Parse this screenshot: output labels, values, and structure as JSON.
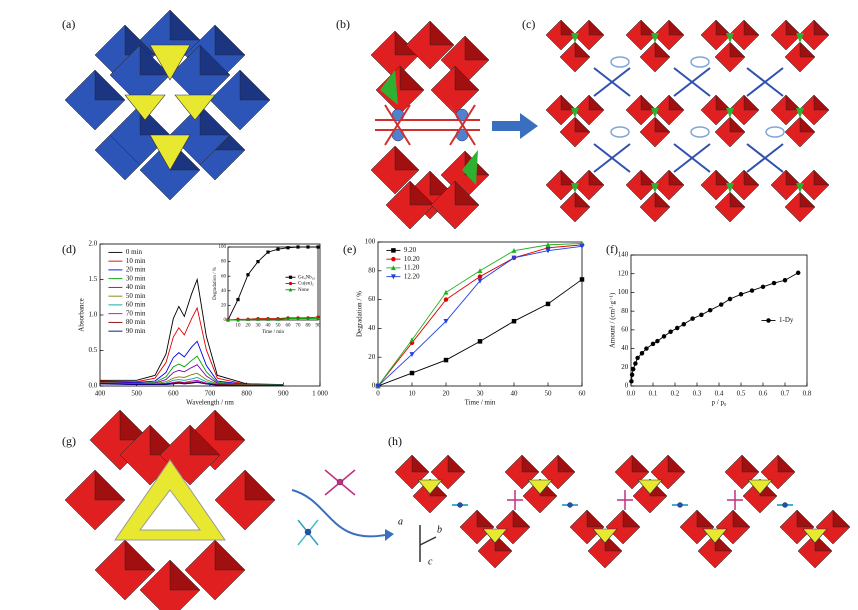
{
  "panel_labels": {
    "a": "(a)",
    "b": "(b)",
    "c": "(c)",
    "g": "(g)",
    "h": "(h)"
  },
  "crystal_axes": [
    "a",
    "b",
    "c"
  ],
  "chart_data": [
    {
      "type": "line",
      "panel_label": "(d)",
      "x_label": "Wavelength / nm",
      "y_label": "Absorbance",
      "x": [
        400,
        500,
        550,
        580,
        600,
        615,
        630,
        650,
        665,
        690,
        720,
        800,
        900
      ],
      "xlim": [
        400,
        1000
      ],
      "xticks": [
        400,
        500,
        600,
        700,
        800,
        900,
        {
          "value": 1000,
          "label": "1 000"
        }
      ],
      "ylim": [
        0,
        2
      ],
      "yticks": [
        {
          "value": 0,
          "label": "0.0"
        },
        0.5,
        {
          "value": 1,
          "label": "1.0"
        },
        1.5,
        {
          "value": 2,
          "label": "2.0"
        }
      ],
      "legend": "upper left",
      "series": [
        {
          "name": "0 min",
          "color": "#000000",
          "values": [
            0.08,
            0.08,
            0.15,
            0.45,
            0.95,
            1.12,
            0.98,
            1.3,
            1.5,
            0.7,
            0.15,
            0.03,
            0.02
          ]
        },
        {
          "name": "10 min",
          "color": "#e00000",
          "values": [
            0.07,
            0.06,
            0.11,
            0.33,
            0.69,
            0.82,
            0.72,
            0.95,
            1.1,
            0.51,
            0.11,
            0.02,
            0.02
          ]
        },
        {
          "name": "20 min",
          "color": "#0000ee",
          "values": [
            0.06,
            0.05,
            0.07,
            0.19,
            0.4,
            0.47,
            0.41,
            0.55,
            0.63,
            0.29,
            0.07,
            0.02,
            0.02
          ]
        },
        {
          "name": "30 min",
          "color": "#00a000",
          "values": [
            0.05,
            0.04,
            0.05,
            0.13,
            0.27,
            0.31,
            0.27,
            0.36,
            0.42,
            0.2,
            0.05,
            0.02,
            0.02
          ]
        },
        {
          "name": "40 min",
          "color": "#8000c0",
          "values": [
            0.05,
            0.04,
            0.04,
            0.09,
            0.19,
            0.22,
            0.2,
            0.26,
            0.3,
            0.14,
            0.04,
            0.02,
            0.01
          ]
        },
        {
          "name": "50 min",
          "color": "#808000",
          "values": [
            0.05,
            0.03,
            0.03,
            0.06,
            0.11,
            0.13,
            0.12,
            0.16,
            0.18,
            0.09,
            0.03,
            0.02,
            0.01
          ]
        },
        {
          "name": "60 min",
          "color": "#00a0a0",
          "values": [
            0.04,
            0.03,
            0.03,
            0.04,
            0.08,
            0.09,
            0.08,
            0.1,
            0.12,
            0.06,
            0.02,
            0.01,
            0.01
          ]
        },
        {
          "name": "70 min",
          "color": "#c000c0",
          "values": [
            0.04,
            0.03,
            0.02,
            0.03,
            0.05,
            0.06,
            0.05,
            0.07,
            0.08,
            0.04,
            0.02,
            0.01,
            0.01
          ]
        },
        {
          "name": "80 min",
          "color": "#800000",
          "values": [
            0.04,
            0.02,
            0.02,
            0.03,
            0.04,
            0.05,
            0.04,
            0.05,
            0.06,
            0.03,
            0.02,
            0.01,
            0.01
          ]
        },
        {
          "name": "90 min",
          "color": "#000080",
          "values": [
            0.03,
            0.02,
            0.02,
            0.02,
            0.03,
            0.04,
            0.03,
            0.04,
            0.05,
            0.03,
            0.01,
            0.01,
            0.01
          ]
        }
      ]
    },
    {
      "type": "line",
      "x_label": "Time / min",
      "y_label": "Degradation / %",
      "x": [
        0,
        10,
        20,
        30,
        40,
        50,
        60,
        70,
        80,
        90
      ],
      "xlim": [
        0,
        90
      ],
      "xticks": [
        10,
        20,
        30,
        40,
        50,
        60,
        70,
        80,
        90
      ],
      "ylim": [
        0,
        100
      ],
      "yticks": [
        0,
        20,
        40,
        60,
        80,
        100
      ],
      "legend": "center right",
      "series": [
        {
          "name": "Ge₄Nb₁₆",
          "color": "#000000",
          "marker": "square",
          "values": [
            0,
            28,
            62,
            80,
            93,
            97,
            99,
            100,
            100,
            100
          ]
        },
        {
          "name": "Cu(en)₂",
          "color": "#e00000",
          "marker": "circle",
          "values": [
            0,
            1,
            1,
            2,
            2,
            2,
            3,
            3,
            3,
            4
          ]
        },
        {
          "name": "None",
          "color": "#00a000",
          "marker": "triangle",
          "values": [
            0,
            0,
            1,
            1,
            1,
            1,
            2,
            2,
            2,
            2
          ]
        }
      ]
    },
    {
      "type": "line",
      "panel_label": "(e)",
      "x_label": "Time / min",
      "y_label": "Degradation / %",
      "x": [
        0,
        10,
        20,
        30,
        40,
        50,
        60
      ],
      "xlim": [
        0,
        60
      ],
      "xticks": [
        0,
        10,
        20,
        30,
        40,
        50,
        60
      ],
      "ylim": [
        0,
        100
      ],
      "yticks": [
        0,
        20,
        40,
        60,
        80,
        100
      ],
      "legend": "upper left",
      "series": [
        {
          "name": "9.20",
          "color": "#000000",
          "marker": "square",
          "values": [
            0,
            9,
            18,
            31,
            45,
            57,
            74
          ]
        },
        {
          "name": "10.20",
          "color": "#e00000",
          "marker": "circle",
          "values": [
            0,
            30,
            60,
            76,
            89,
            96,
            98
          ]
        },
        {
          "name": "11.20",
          "color": "#20b020",
          "marker": "triangle",
          "values": [
            0,
            32,
            65,
            80,
            94,
            98,
            99
          ]
        },
        {
          "name": "12.20",
          "color": "#2040e0",
          "marker": "down-triangle",
          "values": [
            0,
            22,
            45,
            73,
            89,
            94,
            97
          ]
        }
      ]
    },
    {
      "type": "line",
      "panel_label": "(f)",
      "x_label": "p / p₀",
      "y_label": "Amount / (cm³·g⁻¹)",
      "x": [
        0.002,
        0.005,
        0.01,
        0.02,
        0.03,
        0.05,
        0.07,
        0.1,
        0.12,
        0.15,
        0.18,
        0.21,
        0.24,
        0.28,
        0.32,
        0.36,
        0.41,
        0.45,
        0.5,
        0.55,
        0.6,
        0.65,
        0.7,
        0.76
      ],
      "xlim": [
        0,
        0.8
      ],
      "xticks": [
        {
          "value": 0,
          "label": "0.0"
        },
        0.1,
        0.2,
        0.3,
        0.4,
        0.5,
        0.6,
        0.7,
        0.8
      ],
      "ylim": [
        0,
        140
      ],
      "yticks": [
        0,
        20,
        40,
        60,
        80,
        100,
        120,
        140
      ],
      "legend": "center right",
      "series": [
        {
          "name": "1-Dy",
          "color": "#000000",
          "marker": "circle",
          "values": [
            5,
            12,
            18,
            24,
            30,
            35,
            40,
            45,
            48,
            53,
            58,
            62,
            66,
            72,
            76,
            81,
            87,
            93,
            98,
            102,
            106,
            110,
            113,
            121
          ]
        }
      ]
    }
  ]
}
